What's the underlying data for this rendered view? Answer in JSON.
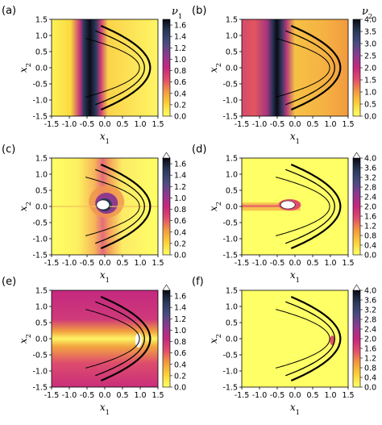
{
  "chart_data": [
    {
      "type": "heatmap",
      "panel_label": "(a)",
      "xlabel": "x",
      "xlabel_sub": "1",
      "ylabel": "x",
      "ylabel_sub": "2",
      "xlim": [
        -1.5,
        1.5
      ],
      "ylim": [
        -1.5,
        1.5
      ],
      "xticks": [
        "-1.5",
        "-1.0",
        "-0.5",
        "0.0",
        "0.5",
        "1.0",
        "1.5"
      ],
      "yticks": [
        "1.5",
        "1.0",
        "0.5",
        "0.0",
        "-0.5",
        "-1.0",
        "-1.5"
      ],
      "colorbar": {
        "title": "ν",
        "title_sub": "1",
        "min": 0.0,
        "max": 1.7,
        "extend_max": false,
        "ticks": [
          "1.6",
          "1.4",
          "1.2",
          "1.0",
          "0.8",
          "0.6",
          "0.4",
          "0.2",
          "0.0"
        ],
        "tick_values": [
          1.6,
          1.4,
          1.2,
          1.0,
          0.8,
          0.6,
          0.4,
          0.2,
          0.0
        ]
      }
    },
    {
      "type": "heatmap",
      "panel_label": "(b)",
      "xlabel": "x",
      "xlabel_sub": "1",
      "ylabel": "x",
      "ylabel_sub": "2",
      "xlim": [
        -1.5,
        1.5
      ],
      "ylim": [
        -1.5,
        1.5
      ],
      "xticks": [
        "-1.5",
        "-1.0",
        "-0.5",
        "0.0",
        "0.5",
        "1.0",
        "1.5"
      ],
      "yticks": [
        "1.5",
        "1.0",
        "0.5",
        "0.0",
        "-0.5",
        "-1.0",
        "-1.5"
      ],
      "colorbar": {
        "title": "ν",
        "title_sub": "2",
        "min": 0.0,
        "max": 4.0,
        "extend_max": false,
        "ticks": [
          "4.0",
          "3.5",
          "3.0",
          "2.5",
          "2.0",
          "1.5",
          "1.0",
          "0.5",
          "0.0"
        ],
        "tick_values": [
          4.0,
          3.5,
          3.0,
          2.5,
          2.0,
          1.5,
          1.0,
          0.5,
          0.0
        ]
      }
    },
    {
      "type": "heatmap",
      "panel_label": "(c)",
      "xlabel": "x",
      "xlabel_sub": "1",
      "ylabel": "x",
      "ylabel_sub": "2",
      "xlim": [
        -1.5,
        1.5
      ],
      "ylim": [
        -1.5,
        1.5
      ],
      "xticks": [
        "-1.5",
        "-1.0",
        "-0.5",
        "0.0",
        "0.5",
        "1.0",
        "1.5"
      ],
      "yticks": [
        "1.5",
        "1.0",
        "0.5",
        "0.0",
        "-0.5",
        "-1.0",
        "-1.5"
      ],
      "colorbar": {
        "title": "",
        "title_sub": "",
        "min": 0.0,
        "max": 1.7,
        "extend_max": true,
        "ticks": [
          "1.6",
          "1.4",
          "1.2",
          "1.0",
          "0.8",
          "0.6",
          "0.4",
          "0.2",
          "0.0"
        ],
        "tick_values": [
          1.6,
          1.4,
          1.2,
          1.0,
          0.8,
          0.6,
          0.4,
          0.2,
          0.0
        ]
      }
    },
    {
      "type": "heatmap",
      "panel_label": "(d)",
      "xlabel": "x",
      "xlabel_sub": "1",
      "ylabel": "x",
      "ylabel_sub": "2",
      "xlim": [
        -1.5,
        1.5
      ],
      "ylim": [
        -1.5,
        1.5
      ],
      "xticks": [
        "-1.5",
        "-1.0",
        "-0.5",
        "0.0",
        "0.5",
        "1.0",
        "1.5"
      ],
      "yticks": [
        "1.5",
        "1.0",
        "0.5",
        "0.0",
        "-0.5",
        "-1.0",
        "-1.5"
      ],
      "colorbar": {
        "title": "",
        "title_sub": "",
        "min": 0.0,
        "max": 4.0,
        "extend_max": true,
        "ticks": [
          "4.0",
          "3.6",
          "3.2",
          "2.8",
          "2.4",
          "2.0",
          "1.6",
          "1.2",
          "0.8",
          "0.4",
          "0.0"
        ],
        "tick_values": [
          4.0,
          3.6,
          3.2,
          2.8,
          2.4,
          2.0,
          1.6,
          1.2,
          0.8,
          0.4,
          0.0
        ]
      }
    },
    {
      "type": "heatmap",
      "panel_label": "(e)",
      "xlabel": "x",
      "xlabel_sub": "1",
      "ylabel": "x",
      "ylabel_sub": "2",
      "xlim": [
        -1.5,
        1.5
      ],
      "ylim": [
        -1.5,
        1.5
      ],
      "xticks": [
        "-1.5",
        "-1.0",
        "-0.5",
        "0.0",
        "0.5",
        "1.0",
        "1.5"
      ],
      "yticks": [
        "1.5",
        "1.0",
        "0.5",
        "0.0",
        "-0.5",
        "-1.0",
        "-1.5"
      ],
      "colorbar": {
        "title": "",
        "title_sub": "",
        "min": 0.0,
        "max": 1.7,
        "extend_max": true,
        "ticks": [
          "1.6",
          "1.4",
          "1.2",
          "1.0",
          "0.8",
          "0.6",
          "0.4",
          "0.2",
          "0.0"
        ],
        "tick_values": [
          1.6,
          1.4,
          1.2,
          1.0,
          0.8,
          0.6,
          0.4,
          0.2,
          0.0
        ]
      }
    },
    {
      "type": "heatmap",
      "panel_label": "(f)",
      "xlabel": "x",
      "xlabel_sub": "1",
      "ylabel": "x",
      "ylabel_sub": "2",
      "xlim": [
        -1.5,
        1.5
      ],
      "ylim": [
        -1.5,
        1.5
      ],
      "xticks": [
        "-1.5",
        "-1.0",
        "-0.5",
        "0.0",
        "0.5",
        "1.0",
        "1.5"
      ],
      "yticks": [
        "1.5",
        "1.0",
        "0.5",
        "0.0",
        "-0.5",
        "-1.0",
        "-1.5"
      ],
      "colorbar": {
        "title": "",
        "title_sub": "",
        "min": 0.0,
        "max": 4.0,
        "extend_max": true,
        "ticks": [
          "4.0",
          "3.6",
          "3.2",
          "2.8",
          "2.4",
          "2.0",
          "1.6",
          "1.2",
          "0.8",
          "0.4",
          "0.0"
        ],
        "tick_values": [
          4.0,
          3.6,
          3.2,
          2.8,
          2.4,
          2.0,
          1.6,
          1.2,
          0.8,
          0.4,
          0.0
        ]
      }
    }
  ],
  "colormap": [
    "#ffff66",
    "#fbd33a",
    "#f29c40",
    "#e04f6a",
    "#c4287f",
    "#8d3a8f",
    "#4a4b82",
    "#2a3a5a",
    "#0a0a14"
  ],
  "attractor_color": "#000000"
}
